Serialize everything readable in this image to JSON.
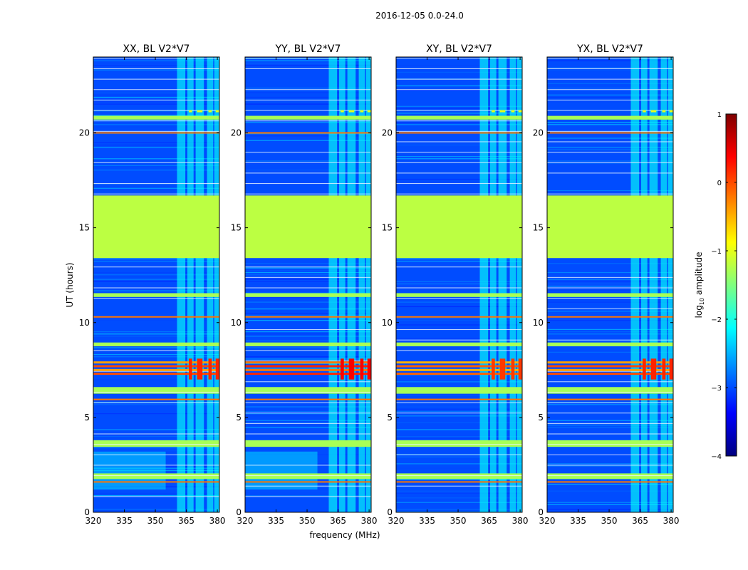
{
  "figure": {
    "suptitle": "2016-12-05 0.0-24.0",
    "ylabel": "UT (hours)",
    "xlabel": "frequency (MHz)"
  },
  "colorbar": {
    "label_prefix": "log",
    "label_subscript": "10",
    "label_suffix": " amplitude",
    "range": [
      -4,
      1
    ],
    "ticks": [
      1,
      0,
      -1,
      -2,
      -3,
      -4
    ],
    "tick_labels": [
      "1",
      "0",
      "−1",
      "−2",
      "−3",
      "−4"
    ],
    "colormap": [
      "#00007f",
      "#0000ff",
      "#007fff",
      "#00ffff",
      "#7fff7f",
      "#ffff00",
      "#ff7f00",
      "#ff0000",
      "#7f0000"
    ]
  },
  "chart_data": {
    "type": "heatmap",
    "xlim": [
      320,
      381
    ],
    "ylim": [
      0,
      24
    ],
    "xticks": [
      320,
      335,
      350,
      365,
      380
    ],
    "yticks": [
      0,
      5,
      10,
      15,
      20
    ],
    "ytick_labels": [
      "0",
      "5",
      "10",
      "15",
      "20"
    ],
    "background_log_amp": -3,
    "flagged_gap_hours": [
      13.4,
      16.7
    ],
    "flagged_log_amp": -1.2,
    "rfi_channels_MHz": [
      [
        360.5,
        364.5
      ],
      [
        365.5,
        368.5
      ],
      [
        369.5,
        373.5
      ],
      [
        375,
        378
      ],
      [
        378.5,
        382
      ]
    ],
    "panels": [
      {
        "title": "XX, BL V2*V7",
        "pol": "XX",
        "peak_log_amp": 0.2,
        "low_freq_ripple": true
      },
      {
        "title": "YY, BL V2*V7",
        "pol": "YY",
        "peak_log_amp": 0.4,
        "low_freq_ripple": true
      },
      {
        "title": "XY, BL V2*V7",
        "pol": "XY",
        "peak_log_amp": 0.1,
        "low_freq_ripple": false
      },
      {
        "title": "YX, BL V2*V7",
        "pol": "YX",
        "peak_log_amp": 0.2,
        "low_freq_ripple": false
      }
    ],
    "bright_row_hours": [
      7.3,
      7.5,
      7.7,
      7.9
    ],
    "orange_row_hours": [
      1.6,
      5.95,
      10.3,
      20.0
    ],
    "green_band_hours": [
      [
        20.7,
        20.9
      ],
      [
        11.35,
        11.55
      ],
      [
        8.75,
        8.95
      ],
      [
        6.25,
        6.6
      ],
      [
        3.45,
        3.8
      ],
      [
        1.75,
        2.05
      ]
    ]
  }
}
